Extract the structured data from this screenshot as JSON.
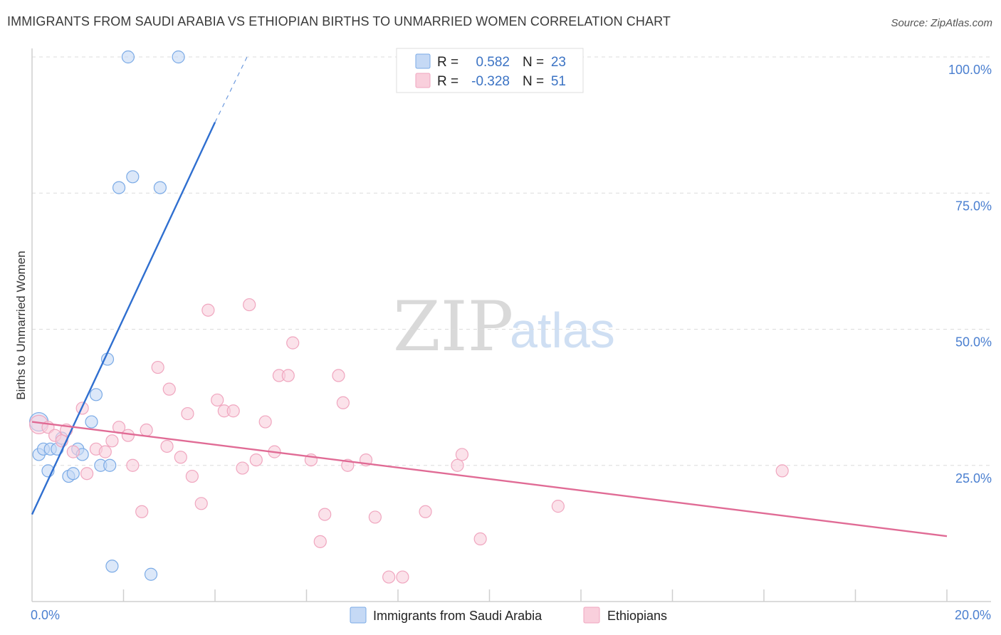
{
  "title": "IMMIGRANTS FROM SAUDI ARABIA VS ETHIOPIAN BIRTHS TO UNMARRIED WOMEN CORRELATION CHART",
  "source": "Source: ZipAtlas.com",
  "watermark": {
    "zip": "ZIP",
    "atlas": "atlas"
  },
  "colors": {
    "blue": "#7aaae6",
    "blue_fill": "#c5d9f5",
    "blue_line": "#2f6fd0",
    "pink": "#f0a6bf",
    "pink_fill": "#f9cfdc",
    "pink_line": "#e06b95",
    "grid": "#dcdcdc",
    "tick": "#4a7fd0"
  },
  "legend": {
    "rows": [
      {
        "r_label": "R =",
        "r_value": "0.582",
        "n_label": "N =",
        "n_value": "23"
      },
      {
        "r_label": "R =",
        "r_value": "-0.328",
        "n_label": "N =",
        "n_value": "51"
      }
    ]
  },
  "chart_data": {
    "type": "scatter",
    "title": "IMMIGRANTS FROM SAUDI ARABIA VS ETHIOPIAN BIRTHS TO UNMARRIED WOMEN CORRELATION CHART",
    "xlabel": "",
    "ylabel": "Births to Unmarried Women",
    "xlim": [
      0,
      20
    ],
    "ylim": [
      0,
      100
    ],
    "x_tick_labels": [
      "0.0%",
      "20.0%"
    ],
    "y_ticks": [
      25,
      50,
      75,
      100
    ],
    "y_tick_labels": [
      "25.0%",
      "50.0%",
      "75.0%",
      "100.0%"
    ],
    "series": [
      {
        "name": "Immigrants from Saudi Arabia",
        "color": "blue",
        "points": [
          [
            0.15,
            33.0
          ],
          [
            0.15,
            27.0
          ],
          [
            0.25,
            28.0
          ],
          [
            0.35,
            24.0
          ],
          [
            0.4,
            28.0
          ],
          [
            0.55,
            28.0
          ],
          [
            0.65,
            30.0
          ],
          [
            0.8,
            23.0
          ],
          [
            0.9,
            23.5
          ],
          [
            1.0,
            28.0
          ],
          [
            1.1,
            27.0
          ],
          [
            1.3,
            33.0
          ],
          [
            1.4,
            38.0
          ],
          [
            1.5,
            25.0
          ],
          [
            1.7,
            25.0
          ],
          [
            1.65,
            44.5
          ],
          [
            1.75,
            6.5
          ],
          [
            1.9,
            76.0
          ],
          [
            2.1,
            100.0
          ],
          [
            2.2,
            78.0
          ],
          [
            2.6,
            5.0
          ],
          [
            2.8,
            76.0
          ],
          [
            3.2,
            100.0
          ]
        ],
        "trend": {
          "x0": 0.0,
          "y0": 16.0,
          "x1": 4.0,
          "y1": 88.0,
          "dash_x1": 4.7,
          "dash_y1": 100.0
        }
      },
      {
        "name": "Ethiopians",
        "color": "pink",
        "points": [
          [
            0.15,
            32.5
          ],
          [
            0.35,
            32.0
          ],
          [
            0.5,
            30.5
          ],
          [
            0.65,
            29.5
          ],
          [
            0.75,
            31.5
          ],
          [
            0.9,
            27.5
          ],
          [
            1.1,
            35.5
          ],
          [
            1.2,
            23.5
          ],
          [
            1.4,
            28.0
          ],
          [
            1.6,
            27.5
          ],
          [
            1.75,
            29.5
          ],
          [
            1.9,
            32.0
          ],
          [
            2.1,
            30.5
          ],
          [
            2.2,
            25.0
          ],
          [
            2.4,
            16.5
          ],
          [
            2.5,
            31.5
          ],
          [
            2.75,
            43.0
          ],
          [
            2.95,
            28.5
          ],
          [
            3.0,
            39.0
          ],
          [
            3.25,
            26.5
          ],
          [
            3.4,
            34.5
          ],
          [
            3.5,
            23.0
          ],
          [
            3.7,
            18.0
          ],
          [
            3.85,
            53.5
          ],
          [
            4.05,
            37.0
          ],
          [
            4.2,
            35.0
          ],
          [
            4.4,
            35.0
          ],
          [
            4.6,
            24.5
          ],
          [
            4.75,
            54.5
          ],
          [
            4.9,
            26.0
          ],
          [
            5.1,
            33.0
          ],
          [
            5.3,
            27.5
          ],
          [
            5.4,
            41.5
          ],
          [
            5.6,
            41.5
          ],
          [
            5.7,
            47.5
          ],
          [
            6.1,
            26.0
          ],
          [
            6.3,
            11.0
          ],
          [
            6.4,
            16.0
          ],
          [
            6.7,
            41.5
          ],
          [
            6.8,
            36.5
          ],
          [
            6.9,
            25.0
          ],
          [
            7.3,
            26.0
          ],
          [
            7.5,
            15.5
          ],
          [
            7.8,
            4.5
          ],
          [
            8.1,
            4.5
          ],
          [
            8.6,
            16.5
          ],
          [
            9.3,
            25.0
          ],
          [
            9.4,
            27.0
          ],
          [
            9.8,
            11.5
          ],
          [
            11.5,
            17.5
          ],
          [
            16.4,
            24.0
          ]
        ],
        "trend": {
          "x0": 0.0,
          "y0": 33.0,
          "x1": 20.0,
          "y1": 12.0
        }
      }
    ]
  },
  "bottom_legend": [
    {
      "label": "Immigrants from Saudi Arabia",
      "color": "blue"
    },
    {
      "label": "Ethiopians",
      "color": "pink"
    }
  ]
}
